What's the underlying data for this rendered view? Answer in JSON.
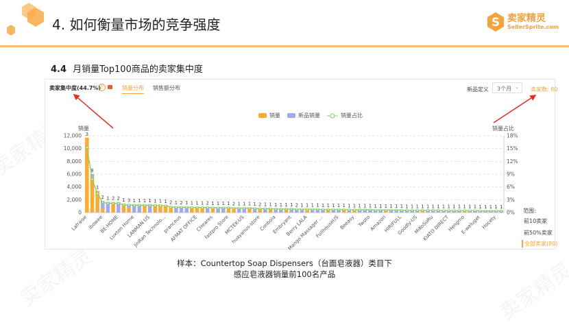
{
  "header": {
    "title": "4. 如何衡量市场的竞争强度",
    "logo_text": "卖家精灵",
    "logo_sub": "SellerSprite.com",
    "watermark": "卖家精灵"
  },
  "section": {
    "number": "4.4",
    "title": "月销量Top100商品的卖家集中度"
  },
  "panel": {
    "concentration_label": "卖家集中度(44.7%)",
    "help_icon": "question-circle-icon",
    "video_icon": "video-camera-icon",
    "tabs": [
      {
        "label": "销量分布",
        "active": true
      },
      {
        "label": "销售额分布",
        "active": false
      }
    ],
    "new_def_label": "新品定义",
    "new_def_value": "3个月",
    "seller_count": "卖家数: 80",
    "range_title": "范围:",
    "range_options": [
      {
        "label": "前10卖家",
        "active": false
      },
      {
        "label": "前50%卖家",
        "active": false
      },
      {
        "label": "全部卖家(80)",
        "active": true
      }
    ]
  },
  "colors": {
    "accent": "#fbab2d",
    "new": "#a3a9f0",
    "line": "#7ed25b",
    "arrow": "#ee2a24",
    "brand": "#f7a23b"
  },
  "chart_data": {
    "type": "bar",
    "stacked": true,
    "legend": [
      "销量",
      "新品销量",
      "销量占比"
    ],
    "legend_position": "top",
    "ylabel": "销量",
    "y2label": "销量占比",
    "ylim": [
      0,
      12000
    ],
    "yticks": [
      "0",
      "2,000",
      "4,000",
      "6,000",
      "8,000",
      "10,000",
      "12,000"
    ],
    "y2lim": [
      0,
      18
    ],
    "y2ticks": [
      "0%",
      "3%",
      "6%",
      "9%",
      "12%",
      "15%",
      "18%"
    ],
    "grid": true,
    "tick_labels": [
      "Lafraise",
      "ibowee",
      "BE-HOME",
      "Luxton Home",
      "LANMAN US",
      "JinRan Technolo...",
      "pranceus",
      "AFMAT OFFICE",
      "CHeares",
      "fastpro Store",
      "MCTEK-US",
      "huayanus-store",
      "Conbola",
      "Embryant",
      "Berry LALA",
      "Mango Massager ...",
      "FullhouseUS",
      "Beeasy",
      "Twoto",
      "Amazon",
      "HIRIFULL",
      "Goodly-US",
      "MiKoSoRu",
      "KIATO DIRECT",
      "Hengmo",
      "E-weluget",
      "Hocety"
    ],
    "sales": [
      11700,
      6000,
      3400,
      1800,
      1650,
      1650,
      1650,
      1400,
      1350,
      1300,
      1300,
      1300,
      1300,
      1250,
      1250,
      1200,
      1000,
      950,
      950,
      950,
      900,
      900,
      900,
      900,
      850,
      850,
      850,
      850,
      800,
      800,
      800,
      800,
      750,
      700,
      700,
      700,
      650,
      650,
      650,
      650,
      600,
      600,
      600,
      600,
      600,
      550,
      550,
      550,
      550,
      550,
      500,
      500,
      500,
      500,
      500,
      450,
      450,
      450,
      450,
      450,
      450,
      400,
      400,
      400,
      400,
      400,
      400,
      400,
      350,
      350,
      350,
      350,
      350,
      350,
      350,
      300,
      300,
      300,
      300,
      300
    ],
    "new_sales": [
      0,
      400,
      0,
      1200,
      1650,
      0,
      1650,
      0,
      600,
      1300,
      1300,
      0,
      1300,
      0,
      0,
      0,
      0,
      950,
      950,
      950,
      0,
      0,
      0,
      900,
      0,
      850,
      850,
      0,
      0,
      850,
      800,
      0,
      750,
      0,
      700,
      0,
      650,
      650,
      0,
      650,
      600,
      600,
      0,
      600,
      600,
      550,
      0,
      550,
      550,
      0,
      500,
      0,
      500,
      500,
      500,
      450,
      450,
      0,
      450,
      450,
      450,
      400,
      400,
      400,
      0,
      400,
      400,
      400,
      350,
      350,
      350,
      350,
      0,
      350,
      350,
      300,
      300,
      300,
      300,
      300
    ],
    "product_counts": [
      3,
      8,
      1,
      2,
      1,
      2,
      2,
      1,
      3,
      1,
      1,
      1,
      1,
      1,
      1,
      1,
      2,
      1,
      2,
      1,
      1,
      1,
      1,
      2,
      1,
      1,
      1,
      1,
      2,
      1,
      1,
      1,
      1,
      2,
      1,
      1,
      1,
      1,
      1,
      1,
      2,
      1,
      1,
      1,
      1,
      1,
      1,
      1,
      1,
      1,
      1,
      1,
      1,
      1,
      1,
      1,
      1,
      1,
      1,
      1,
      1,
      1,
      1,
      1,
      1,
      1,
      1,
      1,
      1,
      1,
      1,
      1,
      1,
      1,
      1,
      1,
      1,
      1,
      1,
      1
    ]
  },
  "caption": {
    "line1": "样本：Countertop Soap Dispensers（台面皂液器）类目下",
    "line2": "感应皂液器销量前100名产品"
  }
}
